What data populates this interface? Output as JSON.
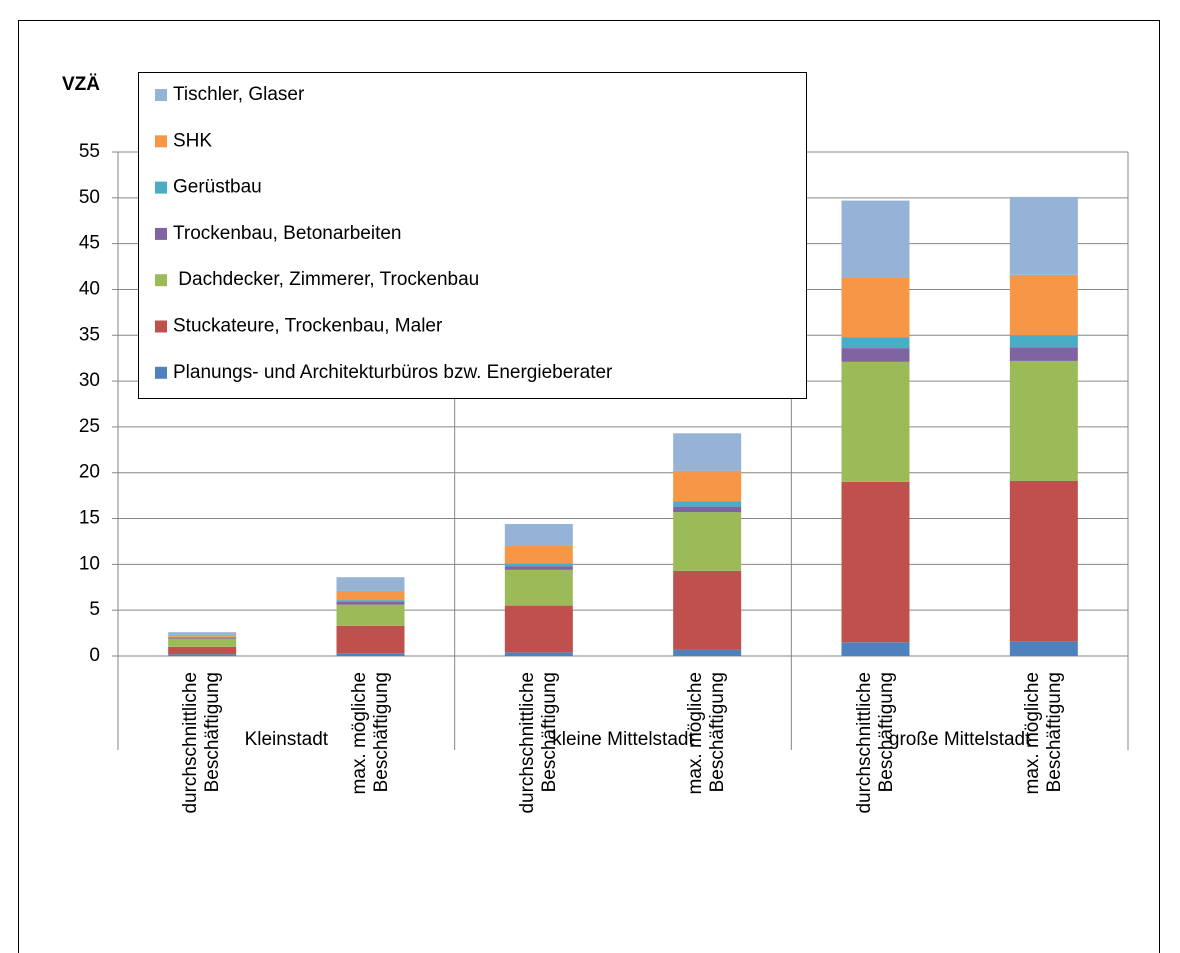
{
  "chart_data": {
    "type": "stacked_bar",
    "ylabel": "VZÄ",
    "categories": [
      "durchschnittliche Beschäftigung",
      "max. mögliche Beschäftigung",
      "durchschnittliche Beschäftigung",
      "max. mögliche Beschäftigung",
      "durchschnittliche Beschäftigung",
      "max. mögliche Beschäftigung"
    ],
    "groups": [
      "Kleinstadt",
      "kleine Mittelstadt",
      "große Mittelstadt"
    ],
    "series": [
      {
        "name": "Planungs- und Architekturbüros bzw. Energieberater",
        "color": "#4f81bd",
        "values": [
          0.2,
          0.3,
          0.4,
          0.7,
          1.5,
          1.6
        ]
      },
      {
        "name": "Stuckateure, Trockenbau, Maler",
        "color": "#c0504d",
        "values": [
          0.8,
          3.0,
          5.1,
          8.6,
          17.5,
          17.5
        ]
      },
      {
        "name": " Dachdecker, Zimmerer, Trockenbau",
        "color": "#9bbb59",
        "values": [
          0.9,
          2.3,
          3.9,
          6.4,
          13.1,
          13.1
        ]
      },
      {
        "name": "Trockenbau, Betonarbeiten",
        "color": "#8064a2",
        "values": [
          0.1,
          0.3,
          0.4,
          0.6,
          1.5,
          1.5
        ]
      },
      {
        "name": "Gerüstbau",
        "color": "#4bacc6",
        "values": [
          0.1,
          0.2,
          0.3,
          0.6,
          1.2,
          1.3
        ]
      },
      {
        "name": "SHK",
        "color": "#f79646",
        "values": [
          0.2,
          1.0,
          1.9,
          3.3,
          6.5,
          6.6
        ]
      },
      {
        "name": "Tischler, Glaser",
        "color": "#95b3d7",
        "values": [
          0.3,
          1.5,
          2.4,
          4.1,
          8.4,
          8.5
        ]
      }
    ],
    "ylim": [
      0,
      55
    ],
    "yticks": [
      0,
      5,
      10,
      15,
      20,
      25,
      30,
      35,
      40,
      45,
      50,
      55
    ],
    "grid": true,
    "legend": "top-left"
  }
}
